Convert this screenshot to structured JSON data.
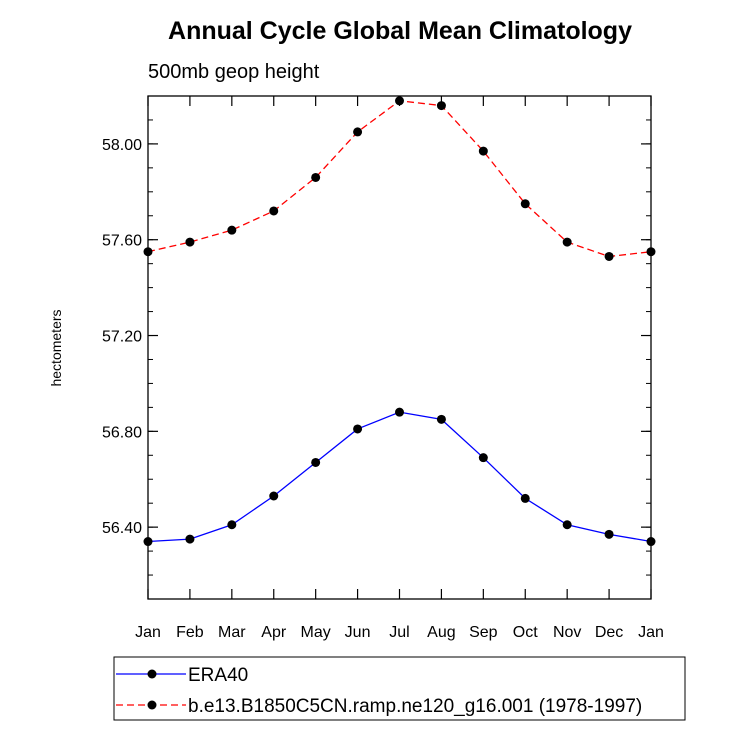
{
  "chart_data": {
    "type": "line",
    "title": "Annual Cycle Global Mean Climatology",
    "subtitle": "500mb geop height",
    "xlabel": "",
    "ylabel": "hectometers",
    "categories": [
      "Jan",
      "Feb",
      "Mar",
      "Apr",
      "May",
      "Jun",
      "Jul",
      "Aug",
      "Sep",
      "Oct",
      "Nov",
      "Dec",
      "Jan"
    ],
    "ylim": [
      56.1,
      58.2
    ],
    "yticks": [
      56.4,
      56.8,
      57.2,
      57.6,
      58.0
    ],
    "ytick_labels": [
      "56.40",
      "56.80",
      "57.20",
      "57.60",
      "58.00"
    ],
    "legend_position": "bottom",
    "series": [
      {
        "name": "ERA40",
        "color": "#0000ff",
        "dash": "solid",
        "values": [
          56.34,
          56.35,
          56.41,
          56.53,
          56.67,
          56.81,
          56.88,
          56.85,
          56.69,
          56.52,
          56.41,
          56.37,
          56.34
        ]
      },
      {
        "name": "b.e13.B1850C5CN.ramp.ne120_g16.001 (1978-1997)",
        "color": "#ff0000",
        "dash": "dashed",
        "values": [
          57.55,
          57.59,
          57.64,
          57.72,
          57.86,
          58.05,
          58.18,
          58.16,
          57.97,
          57.75,
          57.59,
          57.53,
          57.55
        ]
      }
    ]
  }
}
